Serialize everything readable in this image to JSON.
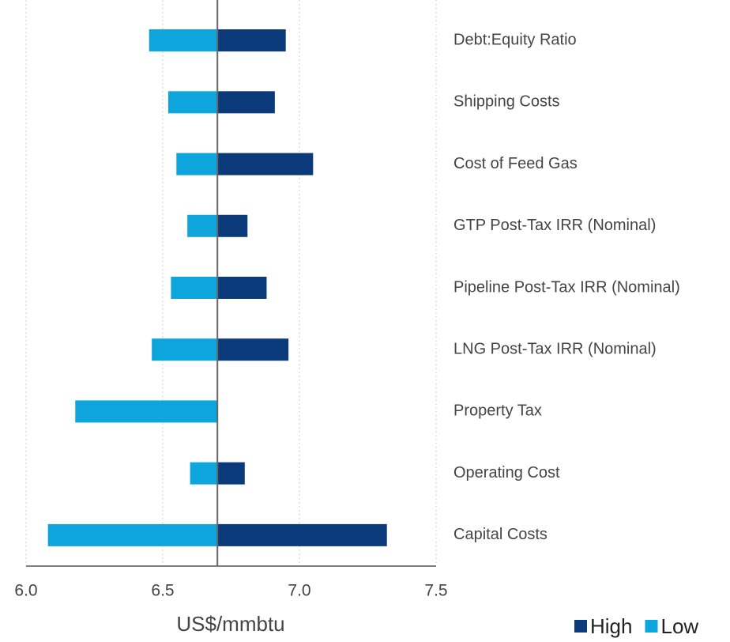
{
  "chart_data": {
    "type": "tornado",
    "categories": [
      "Debt:Equity Ratio",
      "Shipping Costs",
      "Cost of Feed Gas",
      "GTP Post-Tax IRR (Nominal)",
      "Pipeline Post-Tax IRR (Nominal)",
      "LNG Post-Tax IRR (Nominal)",
      "Property Tax",
      "Operating Cost",
      "Capital Costs"
    ],
    "base": 6.7,
    "series": [
      {
        "name": "High",
        "color": "#0b3a7b",
        "values": [
          6.95,
          6.91,
          7.05,
          6.81,
          6.88,
          6.96,
          6.7,
          6.8,
          7.32
        ]
      },
      {
        "name": "Low",
        "color": "#0ea5dd",
        "values": [
          6.45,
          6.52,
          6.55,
          6.59,
          6.53,
          6.46,
          6.18,
          6.6,
          6.08
        ]
      }
    ],
    "xlim": [
      6.0,
      7.5
    ],
    "xticks": [
      {
        "value": 6.0,
        "label": "6.0"
      },
      6.5,
      {
        "value": 7.0,
        "label": "7.0"
      },
      7.5
    ],
    "xlabel": "US$/mmbtu",
    "grid": true,
    "legend": "bottom-right"
  }
}
